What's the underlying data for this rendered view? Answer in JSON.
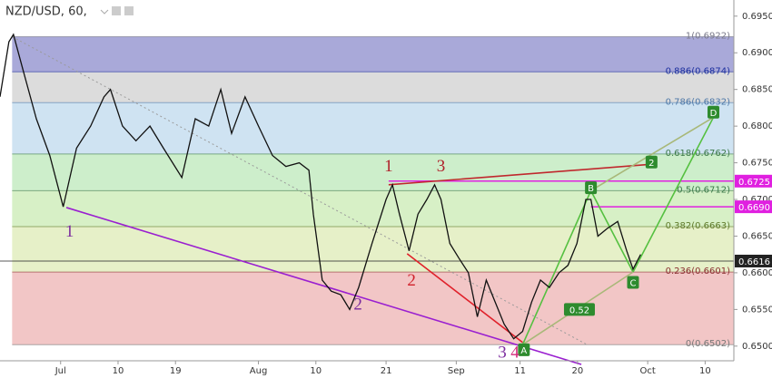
{
  "chart_data": {
    "type": "line",
    "title": "NZD/USD, 60,",
    "xlim": [
      -9.5,
      105.5
    ],
    "ylim": [
      0.648,
      0.6972
    ],
    "xticks": [
      {
        "value": 0,
        "label": "Jul"
      },
      {
        "value": 9,
        "label": "10"
      },
      {
        "value": 18,
        "label": "19"
      },
      {
        "value": 31,
        "label": "Aug"
      },
      {
        "value": 40,
        "label": "10"
      },
      {
        "value": 51,
        "label": "21"
      },
      {
        "value": 62,
        "label": "Sep"
      },
      {
        "value": 72,
        "label": "11"
      },
      {
        "value": 81,
        "label": "20"
      },
      {
        "value": 92,
        "label": "Oct"
      },
      {
        "value": 101,
        "label": "10"
      }
    ],
    "yticks": [
      {
        "value": 0.65,
        "label": "0.6500"
      },
      {
        "value": 0.655,
        "label": "0.6550"
      },
      {
        "value": 0.66,
        "label": "0.6600"
      },
      {
        "value": 0.665,
        "label": "0.6650"
      },
      {
        "value": 0.67,
        "label": "0.6700"
      },
      {
        "value": 0.675,
        "label": "0.6750"
      },
      {
        "value": 0.68,
        "label": "0.6800"
      },
      {
        "value": 0.685,
        "label": "0.6850"
      },
      {
        "value": 0.69,
        "label": "0.6900"
      },
      {
        "value": 0.695,
        "label": "0.6950"
      }
    ],
    "x": [
      -9.5,
      -8.1,
      -7.4,
      -6,
      -3.8,
      -1.7,
      0.4,
      2.5,
      4.7,
      6.8,
      7.8,
      9.7,
      11.8,
      14,
      16.1,
      19,
      21.1,
      23.2,
      25.1,
      26.8,
      28.9,
      31,
      33.2,
      35.3,
      37.4,
      38.9,
      39.6,
      41,
      42.4,
      43.9,
      45.3,
      46.7,
      48.8,
      51,
      52,
      53.1,
      54.6,
      56,
      57.4,
      58.6,
      59.6,
      61,
      62.4,
      63.9,
      65.3,
      66.7,
      68.1,
      69.5,
      71,
      72.4,
      73.8,
      75.2,
      76.6,
      78.1,
      79.5,
      80.9,
      82.3,
      83.1,
      84.2,
      85.6,
      87.3,
      88.7,
      89.7,
      90.9
    ],
    "series": [
      {
        "name": "NZD/USD",
        "color": "#111111",
        "values": [
          0.684,
          0.6915,
          0.6925,
          0.688,
          0.681,
          0.676,
          0.669,
          0.677,
          0.68,
          0.684,
          0.685,
          0.68,
          0.678,
          0.68,
          0.677,
          0.673,
          0.681,
          0.68,
          0.685,
          0.679,
          0.684,
          0.68,
          0.676,
          0.6745,
          0.675,
          0.674,
          0.668,
          0.659,
          0.6575,
          0.657,
          0.655,
          0.658,
          0.664,
          0.67,
          0.672,
          0.668,
          0.663,
          0.668,
          0.67,
          0.672,
          0.67,
          0.664,
          0.662,
          0.66,
          0.654,
          0.659,
          0.656,
          0.653,
          0.651,
          0.652,
          0.656,
          0.659,
          0.658,
          0.66,
          0.661,
          0.664,
          0.67,
          0.67,
          0.665,
          0.666,
          0.667,
          0.663,
          0.6605,
          0.6625
        ]
      }
    ],
    "fib_from": -7.6,
    "fib_levels": [
      {
        "value": 0.6922,
        "label": "1(0.6922)",
        "color": "#7a7a8a",
        "fill": "#a9a9d9"
      },
      {
        "value": 0.6874,
        "label": "0.886(0.6874)",
        "color": "#1c2f9e",
        "fill": "#dcdcdc"
      },
      {
        "value": 0.6832,
        "label": "0.786(0.6832)",
        "color": "#4e78a8",
        "fill": "#cfe3f2"
      },
      {
        "value": 0.6762,
        "label": "0.618(0.6762)",
        "color": "#3d7a4a",
        "fill": "#cdeecb"
      },
      {
        "value": 0.6712,
        "label": "0.5(0.6712)",
        "color": "#3d7a4a",
        "fill": "#d7f0c6"
      },
      {
        "value": 0.6663,
        "label": "0.382(0.6663)",
        "color": "#5f7a2a",
        "fill": "#e6f0c8"
      },
      {
        "value": 0.6601,
        "label": "0.236(0.6601)",
        "color": "#8a3030",
        "fill": "#f2c6c6"
      },
      {
        "value": 0.6502,
        "label": "0(0.6502)",
        "color": "#777777"
      }
    ],
    "hlines": [
      {
        "value": 0.6725,
        "from": 51.4,
        "color": "#e020e0"
      },
      {
        "value": 0.669,
        "label": "0.6690",
        "from": 83.1,
        "color": "#e020e0"
      },
      {
        "value": 0.6616,
        "label": "0.6616",
        "from": -9.5,
        "color": "#222222"
      }
    ],
    "lines": [
      {
        "x": [
          -7.6,
          82.5
        ],
        "y": [
          0.6922,
          0.6502
        ],
        "color": "#9a9a9a",
        "dash": true
      },
      {
        "x": [
          0.9,
          81.6
        ],
        "y": [
          0.6689,
          0.6475
        ],
        "color": "#9a1fd0"
      },
      {
        "x": [
          51.4,
          92.6
        ],
        "y": [
          0.672,
          0.6748
        ],
        "color": "#c0282d"
      },
      {
        "x": [
          54.3,
          72.4
        ],
        "y": [
          0.6626,
          0.6505
        ],
        "color": "#e0202a"
      },
      {
        "x": [
          72.4,
          83.1
        ],
        "y": [
          0.6502,
          0.6712
        ],
        "color": "#55c040"
      },
      {
        "x": [
          83.1,
          89.7
        ],
        "y": [
          0.6712,
          0.6601
        ],
        "color": "#55c040"
      },
      {
        "x": [
          89.7,
          102.3
        ],
        "y": [
          0.6601,
          0.6812
        ],
        "color": "#55c040"
      },
      {
        "x": [
          72.4,
          89.7
        ],
        "y": [
          0.6502,
          0.6601
        ],
        "color": "#a8b878"
      },
      {
        "x": [
          83.1,
          102.3
        ],
        "y": [
          0.6712,
          0.6812
        ],
        "color": "#a8b878"
      }
    ],
    "points": [
      {
        "label": "A",
        "x": 72.6,
        "y": 0.6495
      },
      {
        "label": "B",
        "x": 83.1,
        "y": 0.6716
      },
      {
        "label": "C",
        "x": 89.7,
        "y": 0.6587
      },
      {
        "label": "2",
        "x": 92.6,
        "y": 0.6751
      },
      {
        "label": "D",
        "x": 102.3,
        "y": 0.6819
      },
      {
        "label": "0.52",
        "x": 81.3,
        "y": 0.655
      }
    ],
    "annotations": [
      {
        "text": "1",
        "x": 1.4,
        "y": 0.6655,
        "color": "#7b2b9e"
      },
      {
        "text": "2",
        "x": 46.6,
        "y": 0.6555,
        "color": "#7b2b9e"
      },
      {
        "text": "3",
        "x": 69.2,
        "y": 0.649,
        "color": "#7b2b9e"
      },
      {
        "text": "4",
        "x": 71.2,
        "y": 0.649,
        "color": "#d42a7a"
      },
      {
        "text": "1",
        "x": 51.4,
        "y": 0.6744,
        "color": "#b0202a"
      },
      {
        "text": "3",
        "x": 59.6,
        "y": 0.6744,
        "color": "#b0202a"
      },
      {
        "text": "2",
        "x": 55,
        "y": 0.6588,
        "color": "#d0202a"
      }
    ]
  }
}
